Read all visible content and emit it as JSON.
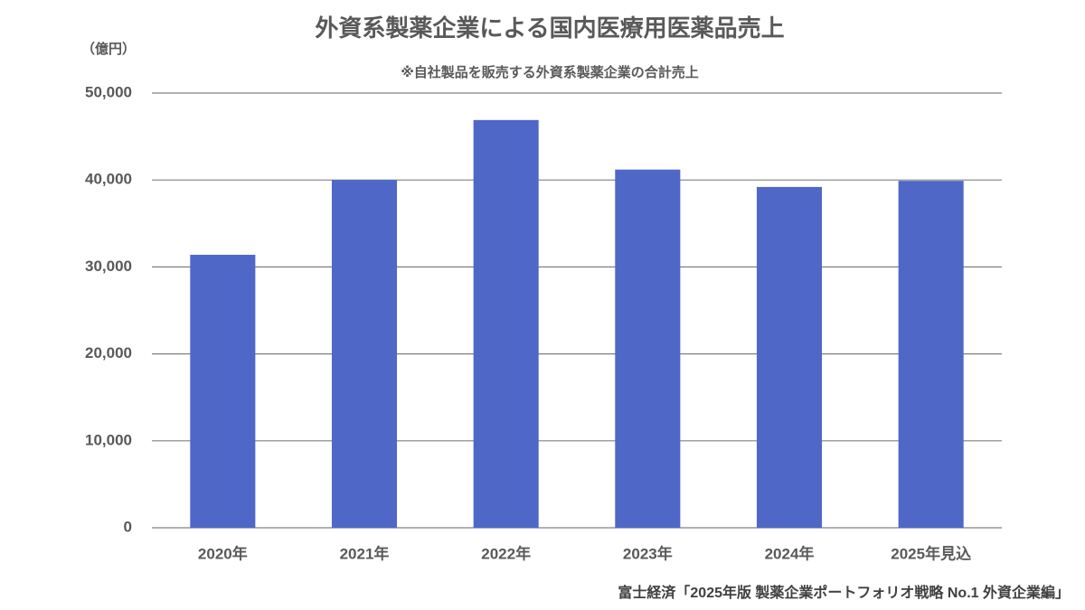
{
  "chart_data": {
    "type": "bar",
    "title": "外資系製薬企業による国内医療用医薬品売上",
    "subtitle": "※自社製品を販売する外資系製薬企業の合計売上",
    "y_label": "（億円）",
    "source": "富士経済「2025年版 製薬企業ポートフォリオ戦略 No.1 外資企業編」",
    "categories": [
      "2020年",
      "2021年",
      "2022年",
      "2023年",
      "2024年",
      "2025年見込"
    ],
    "values": [
      31400,
      40000,
      46900,
      41200,
      39200,
      39900
    ],
    "color": "#4f67c7",
    "ylim": [
      0,
      50000
    ],
    "yticks": [
      0,
      {
        "value": 10000,
        "label": "10,000"
      },
      {
        "value": 20000,
        "label": "20,000"
      },
      {
        "value": 30000,
        "label": "30,000"
      },
      {
        "value": 40000,
        "label": "40,000"
      },
      {
        "value": 50000,
        "label": "50,000"
      }
    ],
    "grid": true
  }
}
